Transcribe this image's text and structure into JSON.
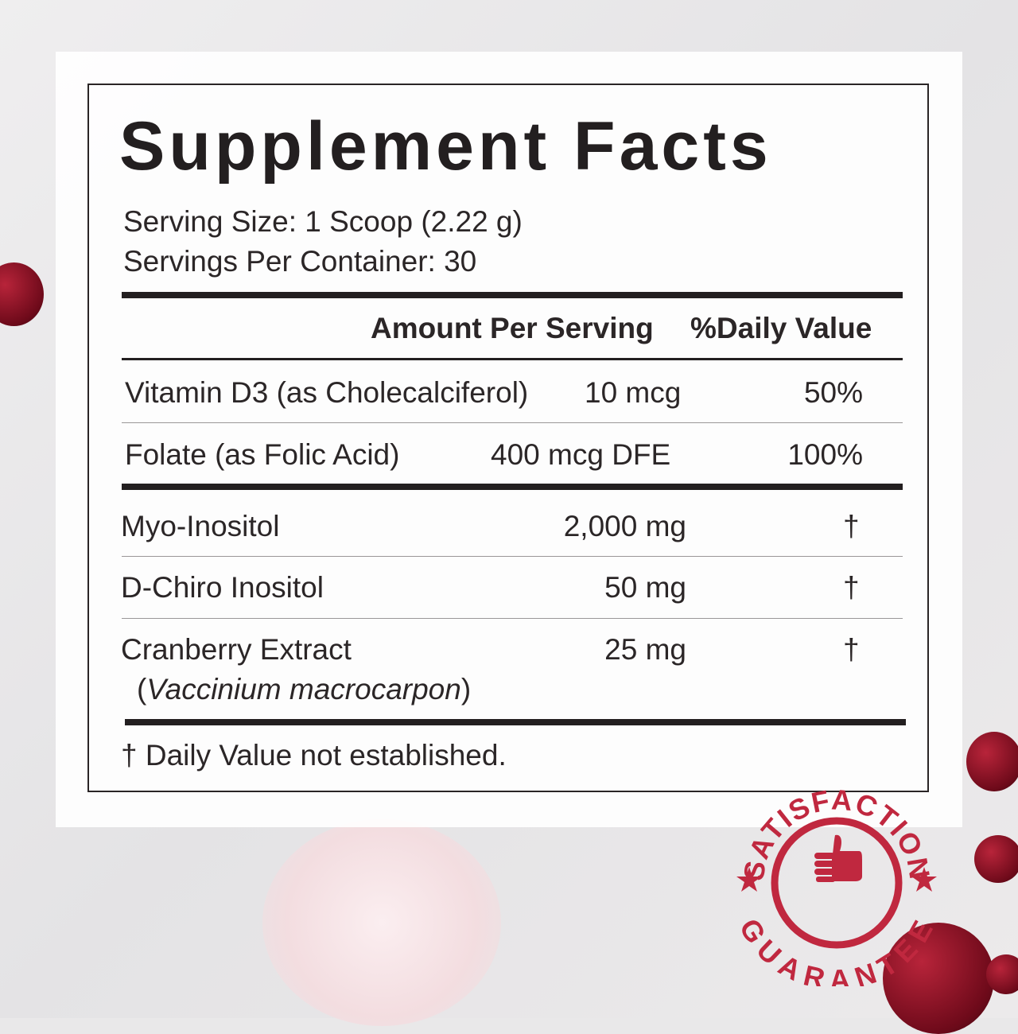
{
  "title": "Supplement Facts",
  "serving_size": "Serving Size: 1 Scoop (2.22 g)",
  "servings_per_container": "Servings Per Container: 30",
  "header": {
    "amount": "Amount Per Serving",
    "dv": "%Daily Value"
  },
  "rows": [
    {
      "name": "Vitamin D3 (as Cholecalciferol)",
      "amount": "10 mcg",
      "dv": "50%"
    },
    {
      "name": "Folate (as Folic Acid)",
      "amount": "400 mcg DFE",
      "dv": "100%"
    },
    {
      "name": "Myo-Inositol",
      "amount": "2,000 mg",
      "dv": "†"
    },
    {
      "name": "D-Chiro Inositol",
      "amount": "50 mg",
      "dv": "†"
    },
    {
      "name": "Cranberry Extract",
      "latin": "Vaccinium macrocarpon",
      "amount": "25 mg",
      "dv": "†"
    }
  ],
  "footnote": "† Daily Value not established.",
  "badge": {
    "top": "SATISFACTION",
    "bottom": "GUARANTEE",
    "icon": "thumbs-up-icon",
    "color": "#c0283f"
  }
}
